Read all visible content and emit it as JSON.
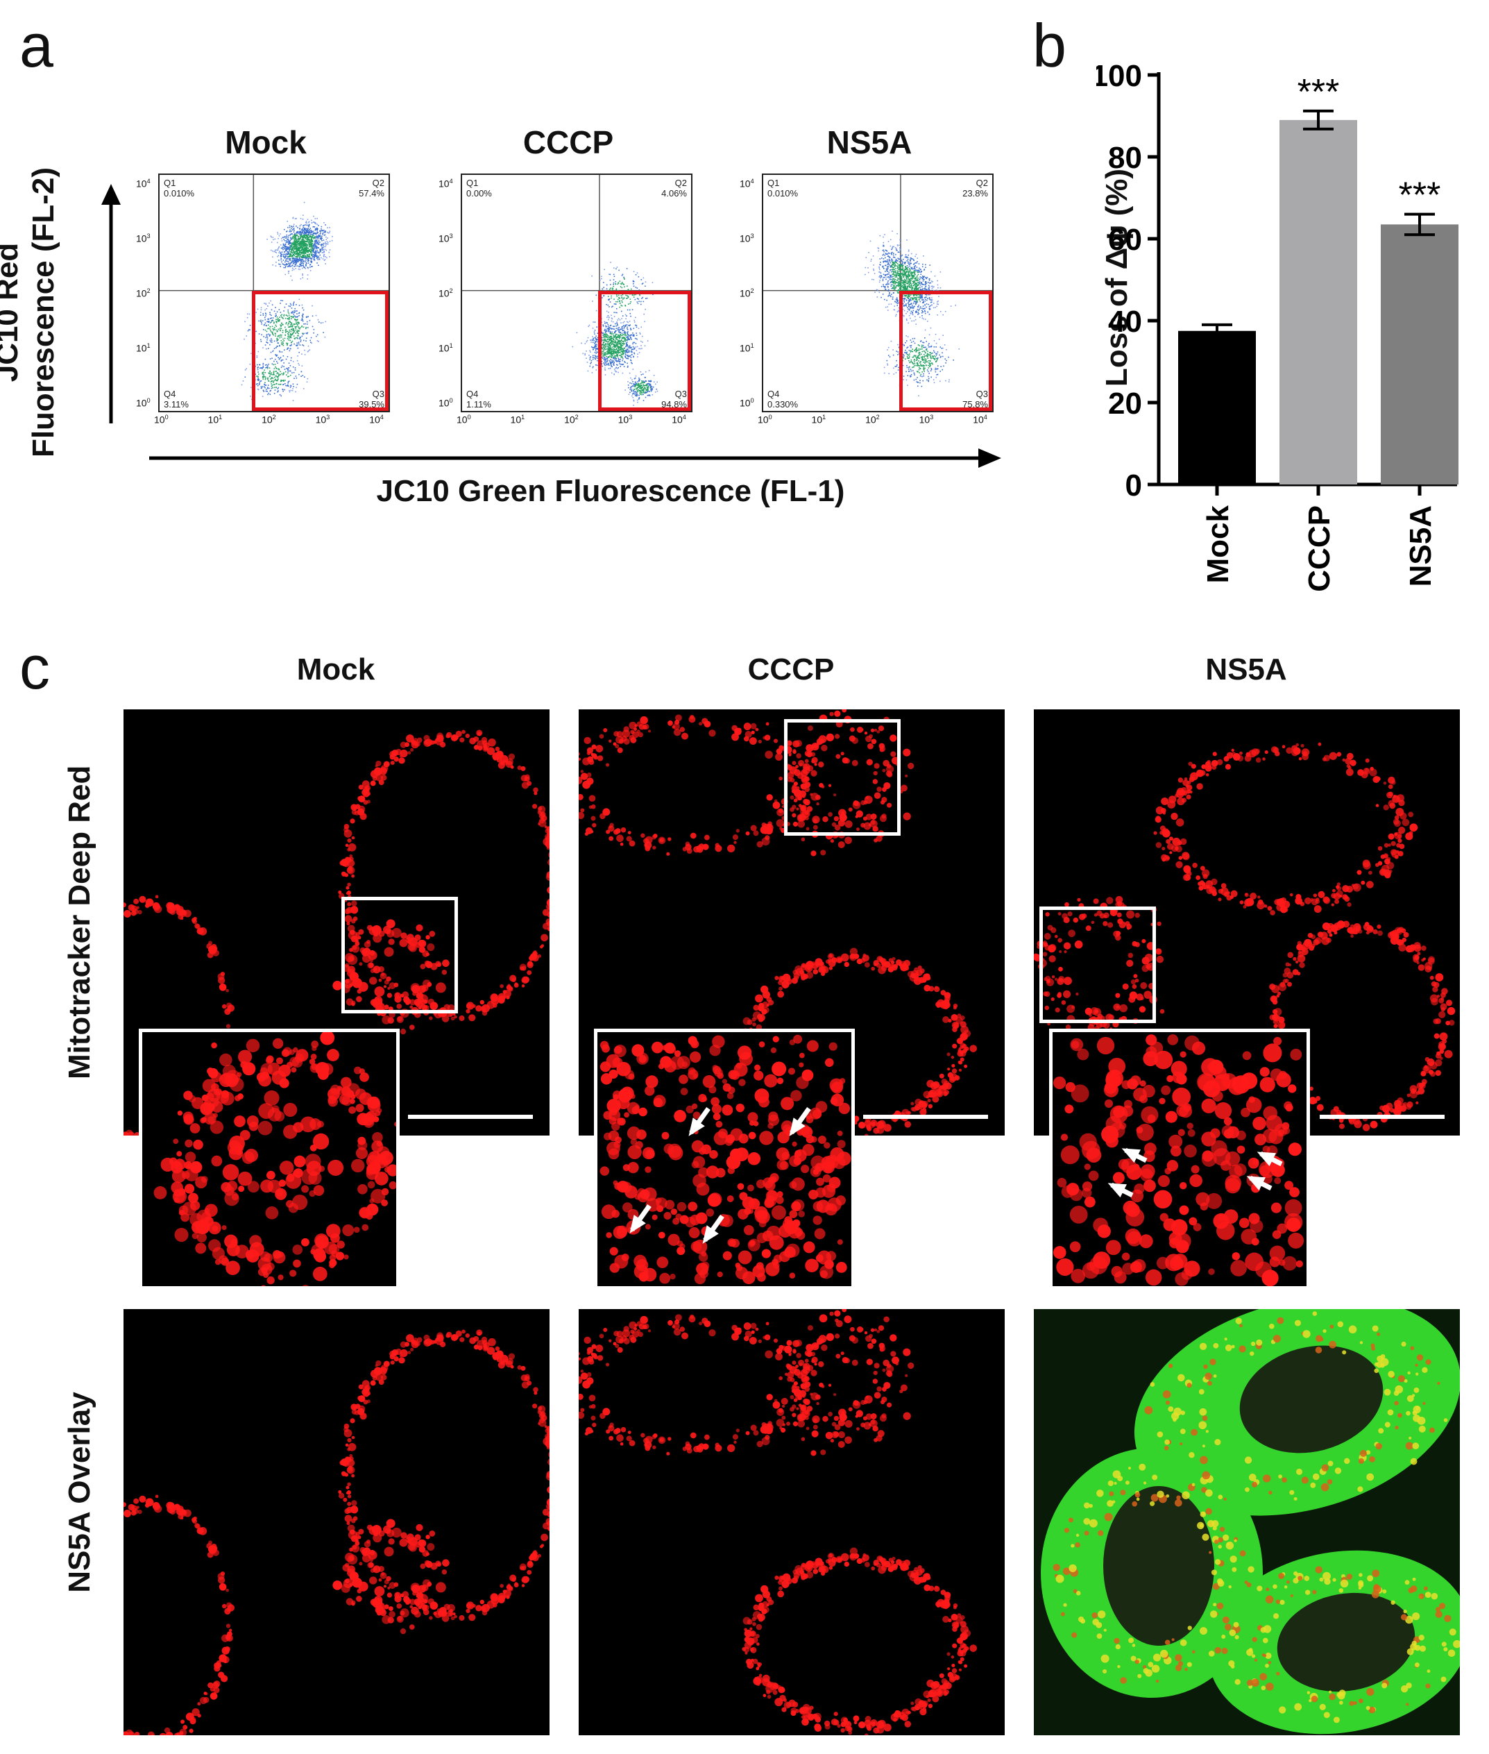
{
  "panels": {
    "a": "a",
    "b": "b",
    "c": "c"
  },
  "panel_a": {
    "y_axis_label_line1": "JC10 Red",
    "y_axis_label_line2": "Fluorescence (FL-2)",
    "x_axis_label": "JC10 Green Fluorescence (FL-1)",
    "plots": [
      {
        "title": "Mock",
        "q1": "Q1",
        "q1_val": "0.010%",
        "q2": "Q2",
        "q2_val": "57.4%",
        "q3": "Q3",
        "q3_val": "39.5%",
        "q4": "Q4",
        "q4_val": "3.11%"
      },
      {
        "title": "CCCP",
        "q1": "Q1",
        "q1_val": "0.00%",
        "q2": "Q2",
        "q2_val": "4.06%",
        "q3": "Q3",
        "q3_val": "94.8%",
        "q4": "Q4",
        "q4_val": "1.11%"
      },
      {
        "title": "NS5A",
        "q1": "Q1",
        "q1_val": "0.010%",
        "q2": "Q2",
        "q2_val": "23.8%",
        "q3": "Q3",
        "q3_val": "75.8%",
        "q4": "Q4",
        "q4_val": "0.330%"
      }
    ],
    "tick_base": "10",
    "tick_exps": [
      "0",
      "1",
      "2",
      "3",
      "4"
    ],
    "gate_color": "#e0141c"
  },
  "chart_data": {
    "type": "bar",
    "categories": [
      "Mock",
      "CCCP",
      "NS5A"
    ],
    "values": [
      37.5,
      89,
      63.5
    ],
    "errors": [
      1.5,
      2.2,
      2.5
    ],
    "significance": [
      "",
      "***",
      "***"
    ],
    "ylabel": "Loss of Δψ (%)",
    "ylim": [
      0,
      100
    ],
    "yticks": [
      "0",
      "20",
      "40",
      "60",
      "80",
      "100"
    ],
    "bar_colors": [
      "#000000",
      "#a9a9ab",
      "#7f7f7f"
    ]
  },
  "panel_c": {
    "columns": [
      "Mock",
      "CCCP",
      "NS5A"
    ],
    "row_labels": [
      "Mitotracker Deep Red",
      "NS5A Overlay"
    ]
  }
}
